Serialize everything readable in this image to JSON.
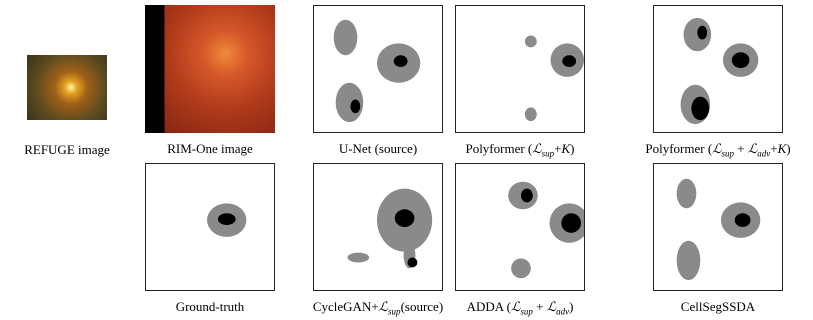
{
  "panels": [
    {
      "caption": [
        {
          "text": "REFUGE image"
        }
      ]
    },
    {
      "caption": [
        {
          "text": "RIM-One image"
        }
      ]
    },
    {
      "caption": [
        {
          "text": "U-Net (source)"
        }
      ]
    },
    {
      "caption": [
        {
          "text": "Polyformer ("
        },
        {
          "text": "ℒ",
          "italic": true
        },
        {
          "text": "sup",
          "sub": true
        },
        {
          "text": "+"
        },
        {
          "text": "K",
          "italic": true
        },
        {
          "text": ")"
        }
      ]
    },
    {
      "caption": [
        {
          "text": "Polyformer ("
        },
        {
          "text": "ℒ",
          "italic": true
        },
        {
          "text": "sup",
          "sub": true
        },
        {
          "text": " + "
        },
        {
          "text": "ℒ",
          "italic": true
        },
        {
          "text": "adv",
          "sub": true
        },
        {
          "text": "+"
        },
        {
          "text": "K",
          "italic": true
        },
        {
          "text": ")"
        }
      ]
    },
    {
      "caption": [
        {
          "text": "Ground-truth"
        }
      ]
    },
    {
      "caption": [
        {
          "text": "CycleGAN+"
        },
        {
          "text": "ℒ",
          "italic": true
        },
        {
          "text": "sup",
          "sub": true
        },
        {
          "text": "(source)"
        }
      ]
    },
    {
      "caption": [
        {
          "text": "ADDA ("
        },
        {
          "text": "ℒ",
          "italic": true
        },
        {
          "text": "sup",
          "sub": true
        },
        {
          "text": " + "
        },
        {
          "text": "ℒ",
          "italic": true
        },
        {
          "text": "adv",
          "sub": true
        },
        {
          "text": ")"
        }
      ]
    },
    {
      "caption": [
        {
          "text": "CellSegSSDA"
        }
      ]
    }
  ]
}
